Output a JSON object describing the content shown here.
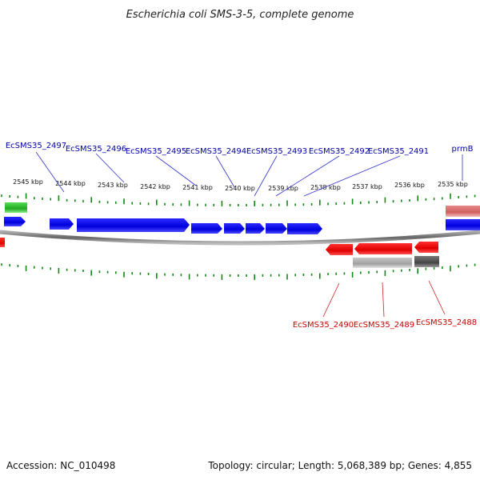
{
  "header": {
    "title": "Escherichia coli SMS-3-5, complete genome"
  },
  "footer": {
    "accession": "Accession: NC_010498",
    "summary": "Topology: circular; Length: 5,068,389 bp; Genes: 4,855"
  },
  "colors": {
    "forward": "#0000e0",
    "reverse": "#ee0000",
    "forward_label": "#0000aa",
    "reverse_label": "#cc0000",
    "tick": "#118811",
    "backbone": "#777777",
    "green_feature": "#33bb33",
    "pink_feature": "#e07a7a",
    "gray_feature": "#aaaaaa",
    "dark_gray_feature": "#555555"
  },
  "scale": {
    "labels": [
      "2545 kbp",
      "2544 kbp",
      "2543 kbp",
      "2542 kbp",
      "2541 kbp",
      "2540 kbp",
      "2539 kbp",
      "2538 kbp",
      "2537 kbp",
      "2536 kbp",
      "2535 kbp"
    ]
  },
  "forward_genes": [
    {
      "name": "EcSMS35_2497"
    },
    {
      "name": "EcSMS35_2496"
    },
    {
      "name": "EcSMS35_2495"
    },
    {
      "name": "EcSMS35_2494"
    },
    {
      "name": "EcSMS35_2493"
    },
    {
      "name": "EcSMS35_2492"
    },
    {
      "name": "EcSMS35_2491"
    },
    {
      "name": "prmB"
    }
  ],
  "reverse_genes": [
    {
      "name": "EcSMS35_2490"
    },
    {
      "name": "EcSMS35_2489"
    },
    {
      "name": "EcSMS35_2488"
    }
  ]
}
